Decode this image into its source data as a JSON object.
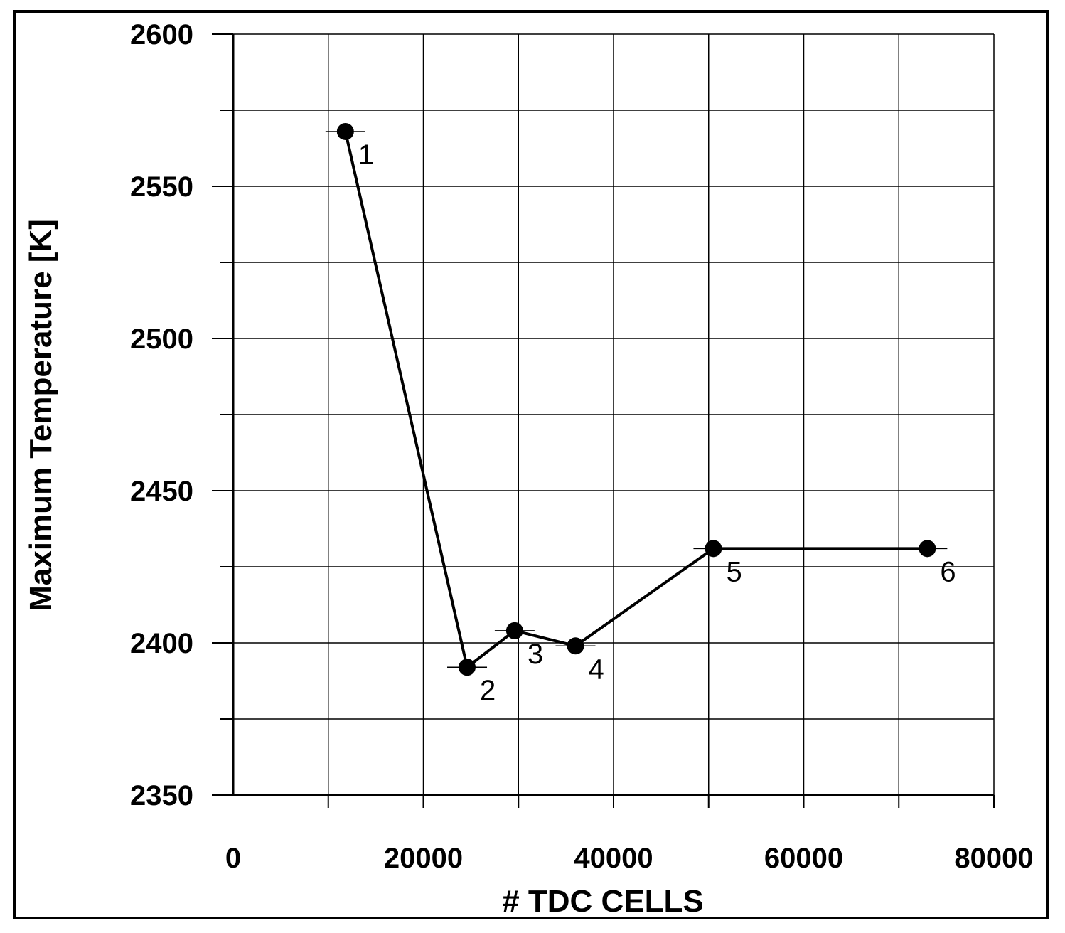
{
  "chart_data": {
    "type": "line",
    "title": "",
    "xlabel": "# TDC CELLS",
    "ylabel": "Maximum Temperature [K]",
    "xlim": [
      0,
      80000
    ],
    "ylim": [
      2350,
      2600
    ],
    "x_ticks": [
      0,
      20000,
      40000,
      60000,
      80000
    ],
    "x_tick_labels": [
      "0",
      "20000",
      "40000",
      "60000",
      "80000"
    ],
    "x_minor_step": 10000,
    "y_ticks": [
      2350,
      2400,
      2450,
      2500,
      2550,
      2600
    ],
    "y_tick_labels": [
      "2350",
      "2400",
      "2450",
      "2500",
      "2550",
      "2600"
    ],
    "y_minor_step": 25,
    "grid": true,
    "legend": "none",
    "line_color": "#000000",
    "series": [
      {
        "x": [
          11800,
          24600,
          29600,
          36000,
          50500,
          73000
        ],
        "y": [
          2568,
          2392,
          2404,
          2399,
          2431,
          2431
        ],
        "point_labels": [
          "1",
          "2",
          "3",
          "4",
          "5",
          "6"
        ]
      }
    ]
  }
}
